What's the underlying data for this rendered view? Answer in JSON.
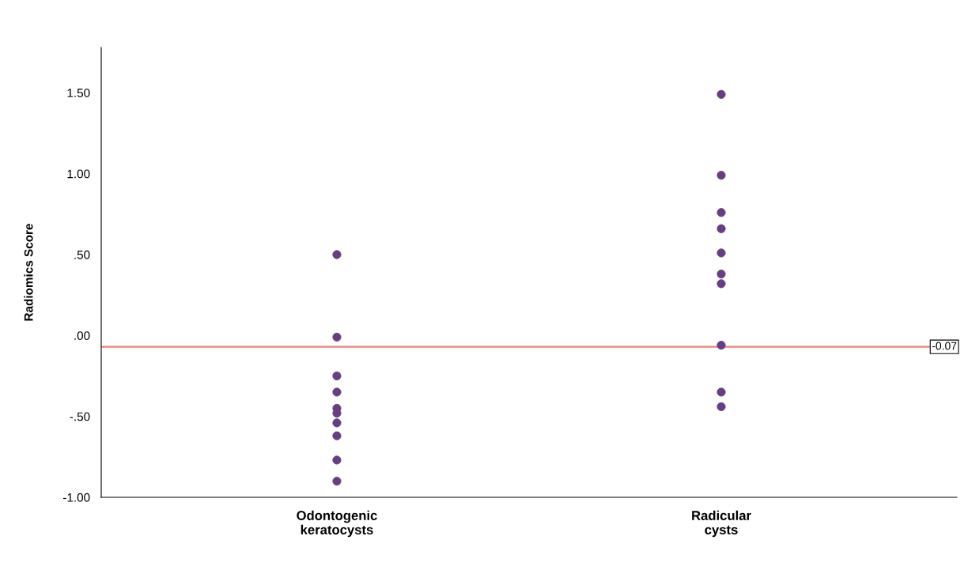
{
  "chart_data": {
    "type": "scatter",
    "ylabel": "Radiomics Score",
    "categories": [
      "Odontogenic\nkeratocysts",
      "Radicular\ncysts"
    ],
    "series": [
      {
        "color": "#6b3a8c",
        "x": [
          "Odontogenic\nkeratocysts",
          "Odontogenic\nkeratocysts",
          "Odontogenic\nkeratocysts",
          "Odontogenic\nkeratocysts",
          "Odontogenic\nkeratocysts",
          "Odontogenic\nkeratocysts",
          "Odontogenic\nkeratocysts",
          "Odontogenic\nkeratocysts",
          "Odontogenic\nkeratocysts",
          "Odontogenic\nkeratocysts"
        ],
        "values": [
          0.5,
          -0.01,
          -0.25,
          -0.35,
          -0.45,
          -0.48,
          -0.54,
          -0.62,
          -0.77,
          -0.9
        ]
      },
      {
        "color": "#6b3a8c",
        "x": [
          "Radicular\ncysts",
          "Radicular\ncysts",
          "Radicular\ncysts",
          "Radicular\ncysts",
          "Radicular\ncysts",
          "Radicular\ncysts",
          "Radicular\ncysts",
          "Radicular\ncysts",
          "Radicular\ncysts",
          "Radicular\ncysts"
        ],
        "values": [
          1.49,
          0.99,
          0.76,
          0.66,
          0.51,
          0.38,
          0.32,
          -0.06,
          -0.35,
          -0.44
        ]
      }
    ],
    "ylim": [
      -1.0,
      1.78
    ],
    "yticks": [
      {
        "value": -1.0,
        "label": "-1.00"
      },
      {
        "value": -0.5,
        "label": "-.50"
      },
      {
        "value": 0.0,
        "label": ".00"
      },
      {
        "value": 0.5,
        "label": ".50"
      },
      {
        "value": 1.0,
        "label": "1.00"
      },
      {
        "value": 1.5,
        "label": "1.50"
      }
    ],
    "ref_lines": [
      {
        "axis": "y",
        "value": -0.07,
        "label": "-0.07",
        "color": "#f08080"
      }
    ],
    "marker": "circle",
    "grid": false,
    "legend": false
  }
}
